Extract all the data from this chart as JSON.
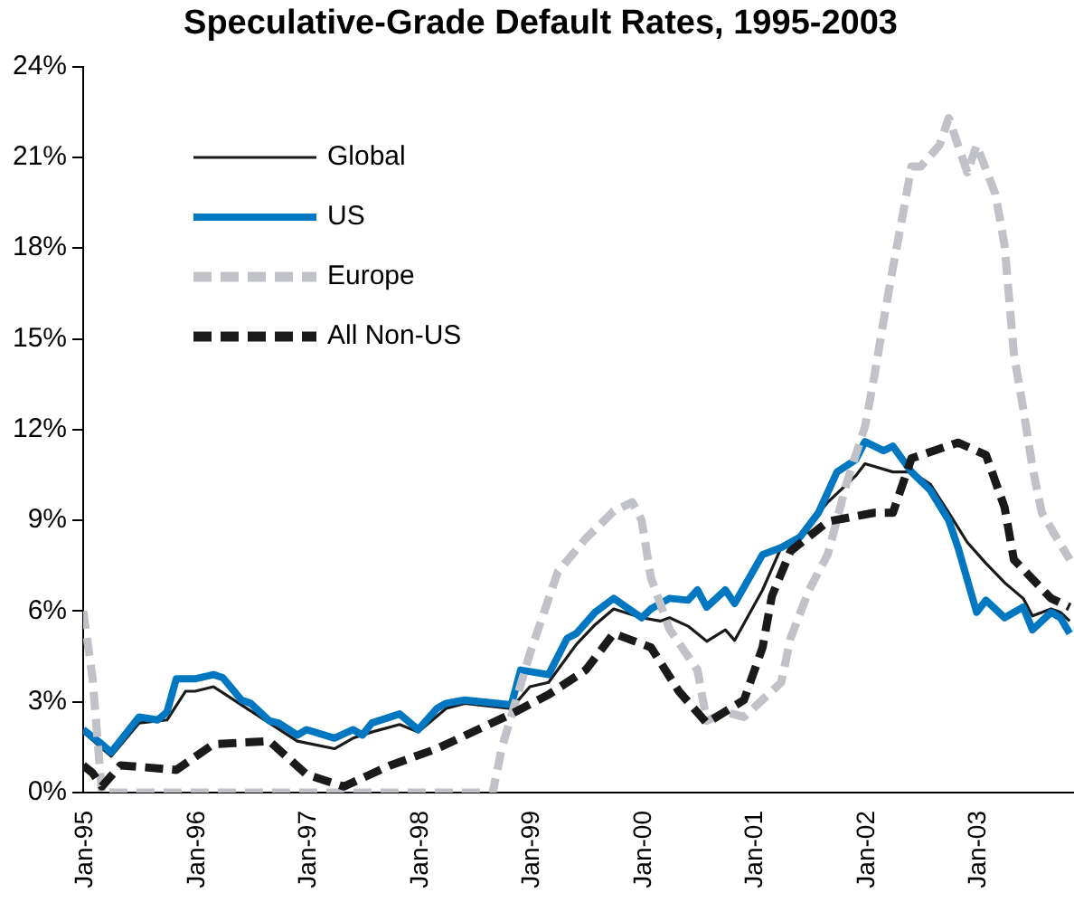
{
  "chart_data": {
    "type": "line",
    "title": "Speculative-Grade Default Rates, 1995-2003",
    "xlim": [
      "1995-01",
      "2003-11-15"
    ],
    "xticks": [
      {
        "value": "1995-01",
        "label": "Jan-95"
      },
      {
        "value": "1996-01",
        "label": "Jan-96"
      },
      {
        "value": "1997-01",
        "label": "Jan-97"
      },
      {
        "value": "1998-01",
        "label": "Jan-98"
      },
      {
        "value": "1999-01",
        "label": "Jan-99"
      },
      {
        "value": "2000-01",
        "label": "Jan-00"
      },
      {
        "value": "2001-01",
        "label": "Jan-01"
      },
      {
        "value": "2002-01",
        "label": "Jan-02"
      },
      {
        "value": "2003-01",
        "label": "Jan-03"
      }
    ],
    "ylim": [
      0,
      24
    ],
    "yticks": [
      {
        "value": 0,
        "label": "0%"
      },
      {
        "value": 3,
        "label": "3%"
      },
      {
        "value": 6,
        "label": "6%"
      },
      {
        "value": 9,
        "label": "9%"
      },
      {
        "value": 12,
        "label": "12%"
      },
      {
        "value": 15,
        "label": "15%"
      },
      {
        "value": 18,
        "label": "18%"
      },
      {
        "value": 21,
        "label": "21%"
      },
      {
        "value": 24,
        "label": "24%"
      }
    ],
    "grid": false,
    "legend": "top left",
    "marker": "none",
    "series": [
      {
        "name": "Global",
        "color": "#1a1a1a",
        "line_style": "solid",
        "x": [
          "1995-01",
          "1995-04",
          "1995-07",
          "1995-10",
          "1995-12",
          "1996-01",
          "1996-03",
          "1996-06",
          "1996-09",
          "1996-12",
          "1997-04",
          "1997-06",
          "1997-08",
          "1997-11",
          "1998-01",
          "1998-04",
          "1998-06",
          "1998-11",
          "1999-01",
          "1999-03",
          "1999-06",
          "1999-08",
          "1999-10",
          "2000-01",
          "2000-03",
          "2000-04",
          "2000-06",
          "2000-08",
          "2000-10",
          "2000-11",
          "2001-02",
          "2001-04",
          "2001-06",
          "2001-09",
          "2001-12",
          "2002-01",
          "2002-04",
          "2002-06",
          "2002-08",
          "2002-10",
          "2002-12",
          "2003-02",
          "2003-04",
          "2003-06",
          "2003-07",
          "2003-09",
          "2003-10",
          "2003-11"
        ],
        "values": [
          2.0,
          1.2,
          2.3,
          2.4,
          3.35,
          3.35,
          3.5,
          2.9,
          2.3,
          1.7,
          1.45,
          1.8,
          2.0,
          2.25,
          2.0,
          2.78,
          2.95,
          2.78,
          3.5,
          3.64,
          4.9,
          5.55,
          6.07,
          5.78,
          5.67,
          5.78,
          5.5,
          5.0,
          5.38,
          5.03,
          6.7,
          8.1,
          8.44,
          9.6,
          10.47,
          10.87,
          10.6,
          10.6,
          10.2,
          9.25,
          8.27,
          7.58,
          6.94,
          6.42,
          5.84,
          6.07,
          5.96,
          5.67
        ]
      },
      {
        "name": "US",
        "color": "#0077c0",
        "line_style": "solid",
        "x": [
          "1995-01",
          "1995-03",
          "1995-04",
          "1995-07",
          "1995-09",
          "1995-10",
          "1995-11",
          "1996-01",
          "1996-03",
          "1996-04",
          "1996-06",
          "1996-07",
          "1996-09",
          "1996-10",
          "1996-12",
          "1997-01",
          "1997-04",
          "1997-06",
          "1997-07",
          "1997-08",
          "1997-11",
          "1998-01",
          "1998-03",
          "1998-04",
          "1998-06",
          "1998-11",
          "1998-12",
          "1999-03",
          "1999-05",
          "1999-06",
          "1999-08",
          "1999-10",
          "2000-01",
          "2000-02",
          "2000-04",
          "2000-06",
          "2000-07",
          "2000-08",
          "2000-10",
          "2000-11",
          "2001-02",
          "2001-04",
          "2001-06",
          "2001-08",
          "2001-10",
          "2001-12",
          "2002-01",
          "2002-03",
          "2002-04",
          "2002-06",
          "2002-08",
          "2002-10",
          "2002-11",
          "2003-01",
          "2003-02",
          "2003-04",
          "2003-06",
          "2003-07",
          "2003-09",
          "2003-10",
          "2003-11"
        ],
        "values": [
          2.08,
          1.6,
          1.33,
          2.5,
          2.4,
          2.66,
          3.76,
          3.76,
          3.9,
          3.8,
          3.06,
          2.95,
          2.37,
          2.3,
          1.9,
          2.08,
          1.8,
          2.08,
          1.9,
          2.3,
          2.6,
          2.08,
          2.78,
          2.95,
          3.06,
          2.9,
          4.05,
          3.9,
          5.1,
          5.26,
          5.96,
          6.42,
          5.78,
          6.07,
          6.42,
          6.36,
          6.7,
          6.13,
          6.7,
          6.25,
          7.87,
          8.1,
          8.44,
          9.25,
          10.6,
          11.0,
          11.6,
          11.3,
          11.45,
          10.6,
          10.0,
          9.0,
          8.1,
          5.96,
          6.36,
          5.78,
          6.13,
          5.38,
          5.96,
          5.78,
          5.26
        ]
      },
      {
        "name": "Europe",
        "color": "#c0c2c8",
        "line_style": "dashed",
        "x": [
          "1995-01",
          "1995-02",
          "1995-03",
          "1998-09",
          "1998-10",
          "1999-01",
          "1999-04",
          "1999-07",
          "1999-10",
          "1999-12",
          "2000-01",
          "2000-02",
          "2000-04",
          "2000-07",
          "2000-08",
          "2000-10",
          "2000-12",
          "2001-04",
          "2001-05",
          "2001-07",
          "2001-09",
          "2001-11",
          "2002-01",
          "2002-02",
          "2002-03",
          "2002-04",
          "2002-05",
          "2002-06",
          "2002-07",
          "2002-09",
          "2002-10",
          "2002-12",
          "2003-01",
          "2003-03",
          "2003-04",
          "2003-05",
          "2003-06",
          "2003-07",
          "2003-08",
          "2003-11"
        ],
        "values": [
          6.0,
          3.8,
          0,
          0,
          1.5,
          4.6,
          7.3,
          8.4,
          9.3,
          9.6,
          9.0,
          7.1,
          5.4,
          4.05,
          2.37,
          2.66,
          2.5,
          3.64,
          5.1,
          6.7,
          7.87,
          10.2,
          12.1,
          13.76,
          15.6,
          17.35,
          19.0,
          20.7,
          20.7,
          21.4,
          22.3,
          20.5,
          21.4,
          19.8,
          18.1,
          14.5,
          12.7,
          10.75,
          9.25,
          7.7
        ]
      },
      {
        "name": "All Non-US",
        "color": "#1a1a1a",
        "line_style": "dashed",
        "x": [
          "1995-01",
          "1995-02",
          "1995-03",
          "1995-05",
          "1995-11",
          "1996-03",
          "1996-09",
          "1997-01",
          "1997-05",
          "1997-10",
          "1998-03",
          "1998-11",
          "1999-03",
          "1999-07",
          "1999-10",
          "2000-02",
          "2000-05",
          "2000-08",
          "2000-12",
          "2001-02",
          "2001-03",
          "2001-05",
          "2001-09",
          "2002-02",
          "2002-04",
          "2002-06",
          "2002-11",
          "2003-02",
          "2003-04",
          "2003-05",
          "2003-09",
          "2003-11"
        ],
        "values": [
          0.9,
          0.65,
          0.2,
          0.9,
          0.75,
          1.6,
          1.7,
          0.6,
          0.2,
          0.9,
          1.45,
          2.6,
          3.24,
          4.05,
          5.26,
          4.8,
          3.35,
          2.3,
          3.06,
          4.8,
          6.5,
          7.98,
          8.96,
          9.25,
          9.25,
          11.05,
          11.57,
          11.16,
          9.43,
          7.7,
          6.42,
          6.13
        ]
      }
    ]
  }
}
